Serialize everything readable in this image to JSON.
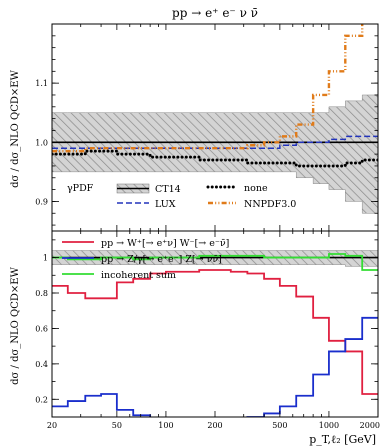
{
  "chart_data": [
    {
      "type": "line",
      "title": "pp → e⁺ e⁻ ν ν̄",
      "ylabel": "dσ / dσ_NLO QCD×EW",
      "ylim": [
        0.85,
        1.2
      ],
      "x_scale": "log",
      "xlim": [
        20,
        2000
      ],
      "yticks": [
        0.9,
        1.0,
        1.1
      ],
      "ytick_labels": [
        "0.9",
        "1.0",
        "1.1"
      ],
      "legend_title": "γPDF",
      "legend_position": "bottom-left",
      "edges": [
        20,
        25,
        32,
        40,
        50,
        63,
        80,
        100,
        126,
        160,
        200,
        250,
        316,
        400,
        500,
        630,
        800,
        1000,
        1260,
        1600,
        2000
      ],
      "band": {
        "name": "CT14",
        "upper": [
          1.05,
          1.05,
          1.05,
          1.05,
          1.05,
          1.05,
          1.05,
          1.05,
          1.05,
          1.05,
          1.05,
          1.05,
          1.05,
          1.05,
          1.05,
          1.05,
          1.05,
          1.06,
          1.07,
          1.08
        ],
        "lower": [
          0.95,
          0.95,
          0.95,
          0.95,
          0.95,
          0.95,
          0.95,
          0.95,
          0.95,
          0.95,
          0.95,
          0.95,
          0.95,
          0.95,
          0.95,
          0.94,
          0.93,
          0.92,
          0.9,
          0.88
        ]
      },
      "series": [
        {
          "name": "LUX",
          "style": "dashed",
          "color": "#2233bb",
          "values": [
            0.99,
            0.99,
            0.99,
            0.99,
            0.99,
            0.99,
            0.99,
            0.99,
            0.99,
            0.99,
            0.99,
            0.99,
            0.99,
            0.99,
            0.995,
            1.0,
            1.0,
            1.005,
            1.01,
            1.01
          ]
        },
        {
          "name": "none",
          "style": "dotted",
          "color": "#000000",
          "values": [
            0.98,
            0.98,
            0.985,
            0.985,
            0.98,
            0.98,
            0.975,
            0.975,
            0.975,
            0.97,
            0.97,
            0.97,
            0.965,
            0.965,
            0.965,
            0.96,
            0.96,
            0.96,
            0.965,
            0.97
          ]
        },
        {
          "name": "NNPDF3.0",
          "style": "dashdot",
          "color": "#e07b1a",
          "values": [
            0.985,
            0.985,
            0.99,
            0.99,
            0.99,
            0.99,
            0.99,
            0.99,
            0.99,
            0.99,
            0.99,
            0.99,
            0.995,
            1.0,
            1.01,
            1.03,
            1.08,
            1.12,
            1.18,
            1.23
          ]
        }
      ]
    },
    {
      "type": "line",
      "ylabel": "dσ / dσ_NLO QCD×EW",
      "xlabel": "p_T,ℓ₂ [GeV]",
      "x_scale": "log",
      "xlim": [
        20,
        2000
      ],
      "ylim": [
        0.1,
        1.15
      ],
      "xticks": [
        20,
        50,
        100,
        200,
        500,
        1000,
        2000
      ],
      "xtick_labels": [
        "20",
        "50",
        "100",
        "200",
        "500",
        "1000",
        "2000"
      ],
      "yticks": [
        0.2,
        0.4,
        0.6,
        0.8,
        1.0
      ],
      "ytick_labels": [
        "0.2",
        "0.4",
        "0.6",
        "0.8",
        "1"
      ],
      "legend_position": "top-left",
      "edges": [
        20,
        25,
        32,
        40,
        50,
        63,
        80,
        100,
        126,
        160,
        200,
        250,
        316,
        400,
        500,
        630,
        800,
        1000,
        1260,
        1600,
        2000
      ],
      "band": {
        "upper": [
          1.04,
          1.04,
          1.04,
          1.04,
          1.04,
          1.04,
          1.04,
          1.04,
          1.04,
          1.04,
          1.04,
          1.04,
          1.04,
          1.04,
          1.04,
          1.04,
          1.04,
          1.04,
          1.04,
          1.04
        ],
        "lower": [
          0.96,
          0.96,
          0.96,
          0.96,
          0.96,
          0.96,
          0.96,
          0.96,
          0.96,
          0.96,
          0.96,
          0.96,
          0.96,
          0.96,
          0.96,
          0.96,
          0.96,
          0.96,
          0.95,
          0.95
        ]
      },
      "series": [
        {
          "name": "pp → W⁺[→ e⁺ν] W⁻[→ e⁻ν̄]",
          "color": "#e02040",
          "values": [
            0.84,
            0.8,
            0.77,
            0.77,
            0.86,
            0.88,
            0.91,
            0.92,
            0.92,
            0.93,
            0.93,
            0.92,
            0.91,
            0.88,
            0.84,
            0.78,
            0.66,
            0.53,
            0.47,
            0.23
          ]
        },
        {
          "name": "pp → Z/γ[→ e⁺e⁻] Z[→ νν̄]",
          "color": "#1a2ecc",
          "values": [
            0.16,
            0.19,
            0.22,
            0.23,
            0.14,
            0.11,
            0.09,
            0.08,
            0.08,
            0.08,
            0.08,
            0.09,
            0.1,
            0.12,
            0.16,
            0.22,
            0.34,
            0.47,
            0.54,
            0.66
          ]
        },
        {
          "name": "incoherent sum",
          "color": "#33dd33",
          "values": [
            1.0,
            0.99,
            0.99,
            1.0,
            1.0,
            0.99,
            1.0,
            1.0,
            1.0,
            1.01,
            1.01,
            1.01,
            1.01,
            1.0,
            1.0,
            1.0,
            1.0,
            1.02,
            1.01,
            0.93
          ]
        }
      ]
    }
  ]
}
